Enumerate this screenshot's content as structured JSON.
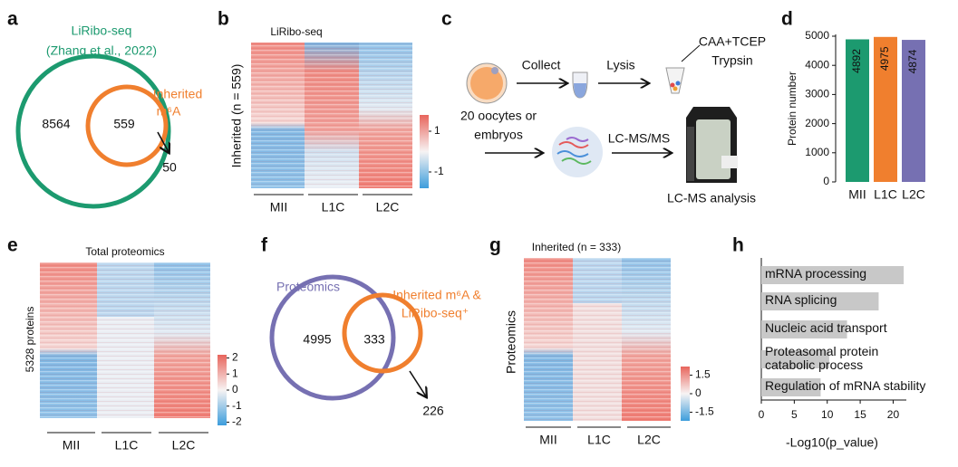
{
  "panel_labels": [
    "a",
    "b",
    "c",
    "d",
    "e",
    "f",
    "g",
    "h"
  ],
  "a": {
    "set1": "LiRibo-seq",
    "set1_source": "(Zhang et al., 2022)",
    "set2": [
      "Inherited",
      "m⁶A"
    ],
    "only_set1": "8564",
    "both": "559",
    "only_set2": "50"
  },
  "b": {
    "title": "LiRibo-seq",
    "ylabel": "Inherited (n = 559)",
    "groups": [
      "MII",
      "L1C",
      "L2C"
    ],
    "colorbar_ticks": [
      1,
      -1
    ]
  },
  "c": {
    "sample": [
      "20 oocytes or",
      "embryos"
    ],
    "step1": "Collect",
    "step2": "Lysis",
    "reagents": [
      "CAA+TCEP",
      "Trypsin"
    ],
    "step3": "LC-MS/MS",
    "result": "LC-MS analysis"
  },
  "d": {
    "type": "bar",
    "ylabel": "Protein number",
    "categories": [
      "MII",
      "L1C",
      "L2C"
    ],
    "values": [
      4892,
      4975,
      4874
    ],
    "colors": [
      "#1c9a6f",
      "#f07f2e",
      "#7670b2"
    ],
    "ylim": [
      0,
      5000
    ],
    "yticks": [
      0,
      1000,
      2000,
      3000,
      4000,
      5000
    ]
  },
  "e": {
    "title": "Total proteomics",
    "ylabel": "5328 proteins",
    "groups": [
      "MII",
      "L1C",
      "L2C"
    ],
    "colorbar_ticks": [
      2,
      1,
      0,
      -1,
      -2
    ]
  },
  "f": {
    "set1": "Proteomics",
    "set2": [
      "Inherited m⁶A &",
      "LiRibo-seq⁺"
    ],
    "only_set1": "4995",
    "both": "333",
    "only_set2": "226"
  },
  "g": {
    "title": "Inherited (n = 333)",
    "ylabel": "Proteomics",
    "groups": [
      "MII",
      "L1C",
      "L2C"
    ],
    "colorbar_ticks": [
      1.5,
      0,
      -1.5
    ]
  },
  "h": {
    "type": "hbar",
    "xlabel": "-Log10(p_value)",
    "categories": [
      "mRNA processing",
      "RNA splicing",
      "Nucleic acid transport",
      "Proteasomal protein catabolic process",
      "Regulation of mRNA stability"
    ],
    "values": [
      21.6,
      17.8,
      13,
      10.3,
      9
    ],
    "color": "#c8c8c8",
    "xlim": [
      0,
      22
    ],
    "xticks": [
      0,
      5,
      10,
      15,
      20
    ]
  }
}
